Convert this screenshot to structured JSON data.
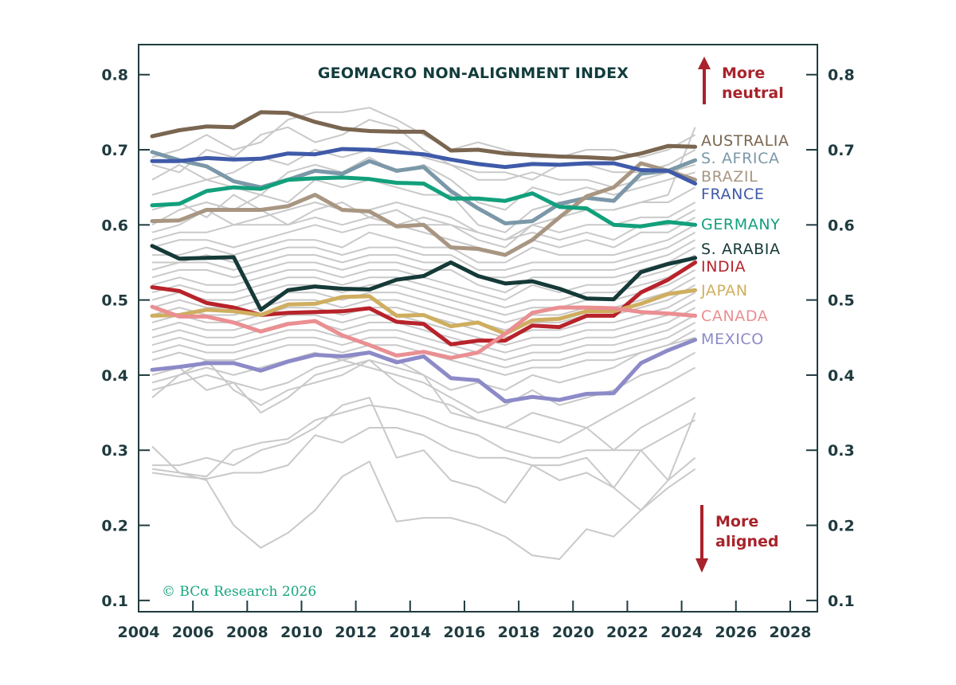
{
  "chart_data": {
    "type": "line",
    "title": "GEOMACRO NON-ALIGNMENT INDEX",
    "credit": "© BCα Research 2026",
    "xlim": [
      2004,
      2029
    ],
    "ylim": [
      0.085,
      0.84
    ],
    "x_ticks": [
      "2004",
      "2006",
      "2008",
      "2010",
      "2012",
      "2014",
      "2016",
      "2018",
      "2020",
      "2022",
      "2024",
      "2026",
      "2028"
    ],
    "y_ticks_left": [
      "0.1",
      "0.2",
      "0.3",
      "0.4",
      "0.5",
      "0.6",
      "0.7",
      "0.8"
    ],
    "y_ticks_right": [
      "0.1",
      "0.2",
      "0.3",
      "0.4",
      "0.5",
      "0.6",
      "0.7",
      "0.8"
    ],
    "annotations": {
      "top": [
        "More",
        "neutral"
      ],
      "bottom": [
        "More",
        "aligned"
      ],
      "arrow_color": "#a8232b"
    },
    "x": [
      2004.5,
      2005.5,
      2006.5,
      2007.5,
      2008.5,
      2009.5,
      2010.5,
      2011.5,
      2012.5,
      2013.5,
      2014.5,
      2015.5,
      2016.5,
      2017.5,
      2018.5,
      2019.5,
      2020.5,
      2021.5,
      2022.5,
      2023.5,
      2024.5
    ],
    "series": [
      {
        "name": "AUSTRALIA",
        "color": "#7a6650",
        "values": [
          0.718,
          0.726,
          0.731,
          0.73,
          0.75,
          0.749,
          0.737,
          0.728,
          0.725,
          0.724,
          0.724,
          0.699,
          0.7,
          0.695,
          0.693,
          0.691,
          0.69,
          0.688,
          0.695,
          0.705,
          0.704
        ]
      },
      {
        "name": "S. AFRICA",
        "color": "#7b98a8",
        "values": [
          0.697,
          0.686,
          0.678,
          0.658,
          0.65,
          0.66,
          0.672,
          0.668,
          0.685,
          0.672,
          0.677,
          0.645,
          0.622,
          0.602,
          0.605,
          0.628,
          0.636,
          0.632,
          0.668,
          0.672,
          0.686
        ]
      },
      {
        "name": "BRAZIL",
        "color": "#a89682",
        "values": [
          0.605,
          0.606,
          0.62,
          0.62,
          0.62,
          0.625,
          0.64,
          0.62,
          0.618,
          0.598,
          0.6,
          0.57,
          0.568,
          0.56,
          0.58,
          0.61,
          0.638,
          0.65,
          0.682,
          0.672,
          0.66
        ]
      },
      {
        "name": "FRANCE",
        "color": "#3f5aa8",
        "values": [
          0.685,
          0.685,
          0.689,
          0.687,
          0.688,
          0.695,
          0.694,
          0.701,
          0.7,
          0.697,
          0.694,
          0.687,
          0.681,
          0.677,
          0.681,
          0.68,
          0.682,
          0.682,
          0.673,
          0.672,
          0.655
        ]
      },
      {
        "name": "GERMANY",
        "color": "#12a07c",
        "values": [
          0.626,
          0.628,
          0.645,
          0.65,
          0.648,
          0.66,
          0.662,
          0.663,
          0.661,
          0.656,
          0.655,
          0.635,
          0.635,
          0.632,
          0.642,
          0.624,
          0.622,
          0.6,
          0.598,
          0.604,
          0.6
        ]
      },
      {
        "name": "S. ARABIA",
        "color": "#153a38",
        "values": [
          0.572,
          0.555,
          0.556,
          0.557,
          0.487,
          0.513,
          0.518,
          0.515,
          0.514,
          0.527,
          0.532,
          0.55,
          0.532,
          0.522,
          0.525,
          0.515,
          0.502,
          0.501,
          0.537,
          0.548,
          0.556
        ]
      },
      {
        "name": "INDIA",
        "color": "#b8232b",
        "values": [
          0.517,
          0.512,
          0.496,
          0.49,
          0.48,
          0.483,
          0.484,
          0.485,
          0.489,
          0.471,
          0.468,
          0.441,
          0.446,
          0.446,
          0.466,
          0.464,
          0.479,
          0.479,
          0.51,
          0.527,
          0.55
        ]
      },
      {
        "name": "JAPAN",
        "color": "#cfae60",
        "values": [
          0.479,
          0.48,
          0.487,
          0.485,
          0.48,
          0.494,
          0.495,
          0.504,
          0.505,
          0.479,
          0.48,
          0.465,
          0.47,
          0.455,
          0.473,
          0.475,
          0.485,
          0.485,
          0.495,
          0.508,
          0.513
        ]
      },
      {
        "name": "CANADA",
        "color": "#ea8f92",
        "values": [
          0.491,
          0.478,
          0.478,
          0.47,
          0.458,
          0.468,
          0.472,
          0.453,
          0.44,
          0.426,
          0.431,
          0.423,
          0.43,
          0.455,
          0.483,
          0.49,
          0.49,
          0.489,
          0.484,
          0.482,
          0.479
        ]
      },
      {
        "name": "MEXICO",
        "color": "#8d8ac8",
        "values": [
          0.407,
          0.411,
          0.416,
          0.416,
          0.406,
          0.418,
          0.427,
          0.425,
          0.43,
          0.417,
          0.425,
          0.396,
          0.393,
          0.365,
          0.371,
          0.367,
          0.375,
          0.376,
          0.416,
          0.433,
          0.447
        ]
      }
    ],
    "background_series_color": "#c9c9c9",
    "background_series": [
      [
        0.62,
        0.63,
        0.61,
        0.64,
        0.62,
        0.6,
        0.62,
        0.63,
        0.61,
        0.6,
        0.61,
        0.6,
        0.58,
        0.57,
        0.6,
        0.61,
        0.62,
        0.62,
        0.63,
        0.64,
        0.73
      ],
      [
        0.69,
        0.7,
        0.72,
        0.7,
        0.71,
        0.74,
        0.75,
        0.75,
        0.756,
        0.74,
        0.72,
        0.7,
        0.71,
        0.7,
        0.69,
        0.69,
        0.7,
        0.7,
        0.69,
        0.7,
        0.72
      ],
      [
        0.68,
        0.67,
        0.7,
        0.69,
        0.72,
        0.73,
        0.71,
        0.72,
        0.74,
        0.73,
        0.7,
        0.68,
        0.67,
        0.67,
        0.66,
        0.68,
        0.68,
        0.67,
        0.67,
        0.68,
        0.7
      ],
      [
        0.66,
        0.68,
        0.66,
        0.67,
        0.69,
        0.68,
        0.7,
        0.69,
        0.7,
        0.71,
        0.69,
        0.68,
        0.66,
        0.66,
        0.67,
        0.66,
        0.66,
        0.65,
        0.66,
        0.67,
        0.68
      ],
      [
        0.64,
        0.65,
        0.66,
        0.65,
        0.64,
        0.67,
        0.68,
        0.67,
        0.69,
        0.67,
        0.68,
        0.66,
        0.63,
        0.62,
        0.65,
        0.64,
        0.65,
        0.64,
        0.65,
        0.66,
        0.67
      ],
      [
        0.6,
        0.62,
        0.63,
        0.62,
        0.64,
        0.63,
        0.66,
        0.65,
        0.66,
        0.65,
        0.64,
        0.64,
        0.6,
        0.59,
        0.62,
        0.63,
        0.62,
        0.62,
        0.63,
        0.63,
        0.65
      ],
      [
        0.59,
        0.6,
        0.62,
        0.6,
        0.61,
        0.62,
        0.63,
        0.62,
        0.62,
        0.63,
        0.62,
        0.61,
        0.59,
        0.58,
        0.6,
        0.59,
        0.6,
        0.6,
        0.61,
        0.61,
        0.63
      ],
      [
        0.58,
        0.59,
        0.59,
        0.6,
        0.6,
        0.6,
        0.61,
        0.6,
        0.61,
        0.62,
        0.6,
        0.6,
        0.59,
        0.58,
        0.59,
        0.58,
        0.59,
        0.58,
        0.6,
        0.6,
        0.62
      ],
      [
        0.57,
        0.58,
        0.58,
        0.57,
        0.58,
        0.59,
        0.6,
        0.59,
        0.6,
        0.6,
        0.59,
        0.58,
        0.57,
        0.56,
        0.58,
        0.57,
        0.58,
        0.57,
        0.59,
        0.59,
        0.61
      ],
      [
        0.56,
        0.56,
        0.57,
        0.56,
        0.57,
        0.58,
        0.58,
        0.57,
        0.59,
        0.58,
        0.57,
        0.57,
        0.55,
        0.55,
        0.57,
        0.56,
        0.56,
        0.56,
        0.57,
        0.58,
        0.6
      ],
      [
        0.55,
        0.55,
        0.56,
        0.55,
        0.56,
        0.57,
        0.57,
        0.56,
        0.57,
        0.57,
        0.56,
        0.56,
        0.54,
        0.54,
        0.55,
        0.55,
        0.55,
        0.55,
        0.56,
        0.57,
        0.59
      ],
      [
        0.54,
        0.55,
        0.55,
        0.54,
        0.55,
        0.56,
        0.56,
        0.55,
        0.56,
        0.56,
        0.55,
        0.55,
        0.53,
        0.53,
        0.54,
        0.54,
        0.54,
        0.54,
        0.55,
        0.56,
        0.58
      ],
      [
        0.53,
        0.54,
        0.54,
        0.53,
        0.54,
        0.55,
        0.55,
        0.54,
        0.55,
        0.55,
        0.54,
        0.54,
        0.52,
        0.51,
        0.53,
        0.53,
        0.53,
        0.53,
        0.54,
        0.55,
        0.57
      ],
      [
        0.52,
        0.53,
        0.52,
        0.52,
        0.53,
        0.54,
        0.54,
        0.53,
        0.54,
        0.54,
        0.53,
        0.52,
        0.51,
        0.5,
        0.52,
        0.51,
        0.52,
        0.52,
        0.53,
        0.54,
        0.56
      ],
      [
        0.51,
        0.52,
        0.51,
        0.51,
        0.52,
        0.53,
        0.53,
        0.52,
        0.53,
        0.53,
        0.52,
        0.51,
        0.5,
        0.49,
        0.5,
        0.5,
        0.51,
        0.51,
        0.52,
        0.53,
        0.55
      ],
      [
        0.5,
        0.51,
        0.5,
        0.5,
        0.51,
        0.52,
        0.52,
        0.51,
        0.52,
        0.52,
        0.51,
        0.5,
        0.49,
        0.48,
        0.49,
        0.49,
        0.5,
        0.5,
        0.51,
        0.52,
        0.54
      ],
      [
        0.49,
        0.5,
        0.49,
        0.49,
        0.5,
        0.51,
        0.51,
        0.5,
        0.51,
        0.51,
        0.5,
        0.49,
        0.48,
        0.47,
        0.48,
        0.48,
        0.49,
        0.49,
        0.5,
        0.51,
        0.53
      ],
      [
        0.48,
        0.49,
        0.48,
        0.48,
        0.49,
        0.5,
        0.5,
        0.49,
        0.5,
        0.5,
        0.49,
        0.48,
        0.47,
        0.46,
        0.47,
        0.47,
        0.48,
        0.48,
        0.49,
        0.5,
        0.52
      ],
      [
        0.47,
        0.48,
        0.47,
        0.47,
        0.48,
        0.49,
        0.49,
        0.48,
        0.49,
        0.49,
        0.48,
        0.47,
        0.46,
        0.45,
        0.46,
        0.46,
        0.47,
        0.47,
        0.48,
        0.49,
        0.51
      ],
      [
        0.46,
        0.47,
        0.46,
        0.46,
        0.47,
        0.48,
        0.48,
        0.47,
        0.48,
        0.48,
        0.47,
        0.46,
        0.45,
        0.44,
        0.45,
        0.45,
        0.46,
        0.46,
        0.47,
        0.48,
        0.5
      ],
      [
        0.45,
        0.46,
        0.45,
        0.45,
        0.46,
        0.47,
        0.47,
        0.46,
        0.47,
        0.47,
        0.46,
        0.45,
        0.44,
        0.43,
        0.44,
        0.44,
        0.45,
        0.45,
        0.46,
        0.47,
        0.49
      ],
      [
        0.44,
        0.45,
        0.44,
        0.44,
        0.45,
        0.46,
        0.46,
        0.45,
        0.46,
        0.46,
        0.45,
        0.44,
        0.43,
        0.42,
        0.43,
        0.43,
        0.44,
        0.44,
        0.45,
        0.46,
        0.48
      ],
      [
        0.43,
        0.44,
        0.43,
        0.43,
        0.44,
        0.45,
        0.45,
        0.44,
        0.45,
        0.45,
        0.44,
        0.43,
        0.42,
        0.41,
        0.42,
        0.42,
        0.43,
        0.43,
        0.44,
        0.45,
        0.47
      ],
      [
        0.42,
        0.43,
        0.42,
        0.42,
        0.43,
        0.44,
        0.44,
        0.43,
        0.44,
        0.44,
        0.43,
        0.42,
        0.41,
        0.4,
        0.41,
        0.41,
        0.42,
        0.42,
        0.43,
        0.44,
        0.46
      ],
      [
        0.39,
        0.4,
        0.41,
        0.4,
        0.41,
        0.42,
        0.43,
        0.42,
        0.43,
        0.42,
        0.4,
        0.38,
        0.39,
        0.38,
        0.4,
        0.39,
        0.4,
        0.41,
        0.43,
        0.44,
        0.45
      ],
      [
        0.38,
        0.39,
        0.4,
        0.39,
        0.38,
        0.39,
        0.41,
        0.42,
        0.41,
        0.4,
        0.39,
        0.37,
        0.35,
        0.36,
        0.38,
        0.36,
        0.37,
        0.38,
        0.4,
        0.41,
        0.43
      ],
      [
        0.37,
        0.4,
        0.42,
        0.38,
        0.36,
        0.38,
        0.39,
        0.4,
        0.42,
        0.39,
        0.37,
        0.36,
        0.34,
        0.33,
        0.35,
        0.34,
        0.33,
        0.35,
        0.37,
        0.39,
        0.41
      ],
      [
        0.4,
        0.41,
        0.38,
        0.39,
        0.35,
        0.37,
        0.4,
        0.41,
        0.42,
        0.41,
        0.4,
        0.35,
        0.34,
        0.33,
        0.32,
        0.31,
        0.33,
        0.3,
        0.33,
        0.35,
        0.37
      ],
      [
        0.305,
        0.27,
        0.265,
        0.3,
        0.31,
        0.315,
        0.34,
        0.35,
        0.36,
        0.355,
        0.345,
        0.33,
        0.32,
        0.3,
        0.29,
        0.29,
        0.3,
        0.3,
        0.3,
        0.26,
        0.35
      ],
      [
        0.28,
        0.28,
        0.29,
        0.28,
        0.3,
        0.31,
        0.33,
        0.36,
        0.37,
        0.29,
        0.3,
        0.26,
        0.25,
        0.23,
        0.28,
        0.26,
        0.27,
        0.25,
        0.3,
        0.32,
        0.34
      ],
      [
        0.275,
        0.27,
        0.26,
        0.2,
        0.17,
        0.19,
        0.22,
        0.265,
        0.285,
        0.205,
        0.21,
        0.21,
        0.2,
        0.185,
        0.16,
        0.155,
        0.195,
        0.185,
        0.22,
        0.25,
        0.275
      ],
      [
        0.27,
        0.265,
        0.262,
        0.27,
        0.27,
        0.28,
        0.32,
        0.31,
        0.33,
        0.33,
        0.32,
        0.3,
        0.29,
        0.29,
        0.28,
        0.28,
        0.29,
        0.25,
        0.22,
        0.26,
        0.29
      ]
    ],
    "grid": false,
    "legend": "direct-labels-right"
  }
}
